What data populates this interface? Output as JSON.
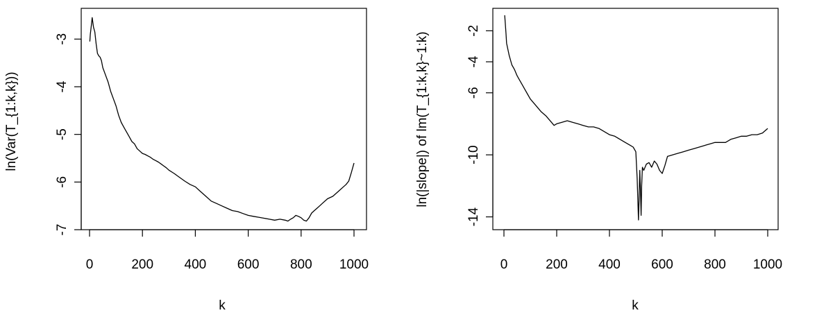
{
  "chart_data": [
    {
      "type": "line",
      "title": "",
      "xlabel": "k",
      "ylabel": "ln(Var(T_{1:k,k}))",
      "xlim": [
        0,
        1000
      ],
      "ylim": [
        -7,
        -2.5
      ],
      "xticks": [
        0,
        200,
        400,
        600,
        800,
        1000
      ],
      "xtick_labels": [
        "0",
        "200",
        "400",
        "600",
        "800",
        "1000"
      ],
      "yticks": [
        -7,
        -6,
        -5,
        -4,
        -3
      ],
      "ytick_labels": [
        "-7",
        "-6",
        "-5",
        "-4",
        "-3"
      ],
      "grid": false,
      "series": [
        {
          "x": [
            1,
            3,
            5,
            7,
            10,
            15,
            20,
            25,
            30,
            35,
            40,
            45,
            50,
            60,
            70,
            80,
            90,
            100,
            110,
            120,
            130,
            140,
            150,
            160,
            170,
            180,
            190,
            200,
            210,
            220,
            230,
            240,
            250,
            260,
            270,
            280,
            290,
            300,
            320,
            340,
            360,
            380,
            400,
            420,
            440,
            460,
            480,
            500,
            520,
            540,
            560,
            580,
            600,
            620,
            640,
            660,
            680,
            700,
            720,
            740,
            750,
            760,
            770,
            780,
            790,
            800,
            810,
            820,
            830,
            840,
            850,
            860,
            870,
            880,
            900,
            920,
            940,
            960,
            970,
            980,
            990,
            1000
          ],
          "y": [
            -3.05,
            -2.9,
            -2.8,
            -2.7,
            -2.55,
            -2.75,
            -2.85,
            -3.1,
            -3.3,
            -3.35,
            -3.38,
            -3.45,
            -3.6,
            -3.75,
            -3.9,
            -4.1,
            -4.25,
            -4.4,
            -4.6,
            -4.75,
            -4.85,
            -4.95,
            -5.05,
            -5.15,
            -5.2,
            -5.3,
            -5.35,
            -5.4,
            -5.42,
            -5.45,
            -5.48,
            -5.52,
            -5.55,
            -5.58,
            -5.62,
            -5.66,
            -5.7,
            -5.75,
            -5.82,
            -5.9,
            -5.98,
            -6.05,
            -6.1,
            -6.2,
            -6.3,
            -6.4,
            -6.45,
            -6.5,
            -6.55,
            -6.6,
            -6.62,
            -6.66,
            -6.7,
            -6.72,
            -6.74,
            -6.76,
            -6.78,
            -6.8,
            -6.78,
            -6.8,
            -6.82,
            -6.78,
            -6.75,
            -6.7,
            -6.72,
            -6.75,
            -6.8,
            -6.82,
            -6.75,
            -6.65,
            -6.6,
            -6.55,
            -6.5,
            -6.45,
            -6.35,
            -6.3,
            -6.2,
            -6.1,
            -6.05,
            -5.98,
            -5.8,
            -5.6
          ]
        }
      ]
    },
    {
      "type": "line",
      "title": "",
      "xlabel": "k",
      "ylabel": "ln(|slope|) of lm(T_{1:k,k}~1:k)",
      "xlim": [
        0,
        1000
      ],
      "ylim": [
        -14.2,
        -1
      ],
      "xticks": [
        0,
        200,
        400,
        600,
        800,
        1000
      ],
      "xtick_labels": [
        "0",
        "200",
        "400",
        "600",
        "800",
        "1000"
      ],
      "yticks": [
        -14,
        -10,
        -6,
        -4,
        -2
      ],
      "ytick_labels": [
        "-14",
        "-10",
        "-6",
        "-4",
        "-2"
      ],
      "grid": false,
      "series": [
        {
          "x": [
            3,
            5,
            8,
            10,
            15,
            20,
            30,
            40,
            50,
            60,
            70,
            80,
            90,
            100,
            120,
            140,
            160,
            180,
            190,
            200,
            220,
            240,
            260,
            280,
            300,
            320,
            340,
            360,
            380,
            400,
            420,
            440,
            460,
            480,
            490,
            500,
            505,
            510,
            512,
            515,
            518,
            520,
            522,
            525,
            530,
            540,
            550,
            560,
            570,
            580,
            590,
            600,
            610,
            620,
            640,
            660,
            680,
            700,
            720,
            740,
            760,
            780,
            800,
            820,
            840,
            860,
            880,
            900,
            920,
            940,
            960,
            980,
            1000
          ],
          "y": [
            -1,
            -1.5,
            -2.2,
            -2.8,
            -3.2,
            -3.6,
            -4.2,
            -4.5,
            -4.9,
            -5.2,
            -5.5,
            -5.8,
            -6.1,
            -6.4,
            -6.8,
            -7.2,
            -7.5,
            -7.9,
            -8.1,
            -8.0,
            -7.9,
            -7.8,
            -7.9,
            -8.0,
            -8.1,
            -8.2,
            -8.2,
            -8.3,
            -8.5,
            -8.7,
            -8.8,
            -9.0,
            -9.2,
            -9.4,
            -9.5,
            -9.8,
            -11.5,
            -14.2,
            -13.0,
            -11.0,
            -12.5,
            -13.9,
            -12.0,
            -10.8,
            -11.0,
            -10.6,
            -10.5,
            -10.8,
            -10.4,
            -10.6,
            -11.0,
            -11.2,
            -10.7,
            -10.1,
            -10.0,
            -9.9,
            -9.8,
            -9.7,
            -9.6,
            -9.5,
            -9.4,
            -9.3,
            -9.2,
            -9.2,
            -9.2,
            -9.0,
            -8.9,
            -8.8,
            -8.8,
            -8.7,
            -8.7,
            -8.6,
            -8.3
          ]
        }
      ]
    }
  ]
}
